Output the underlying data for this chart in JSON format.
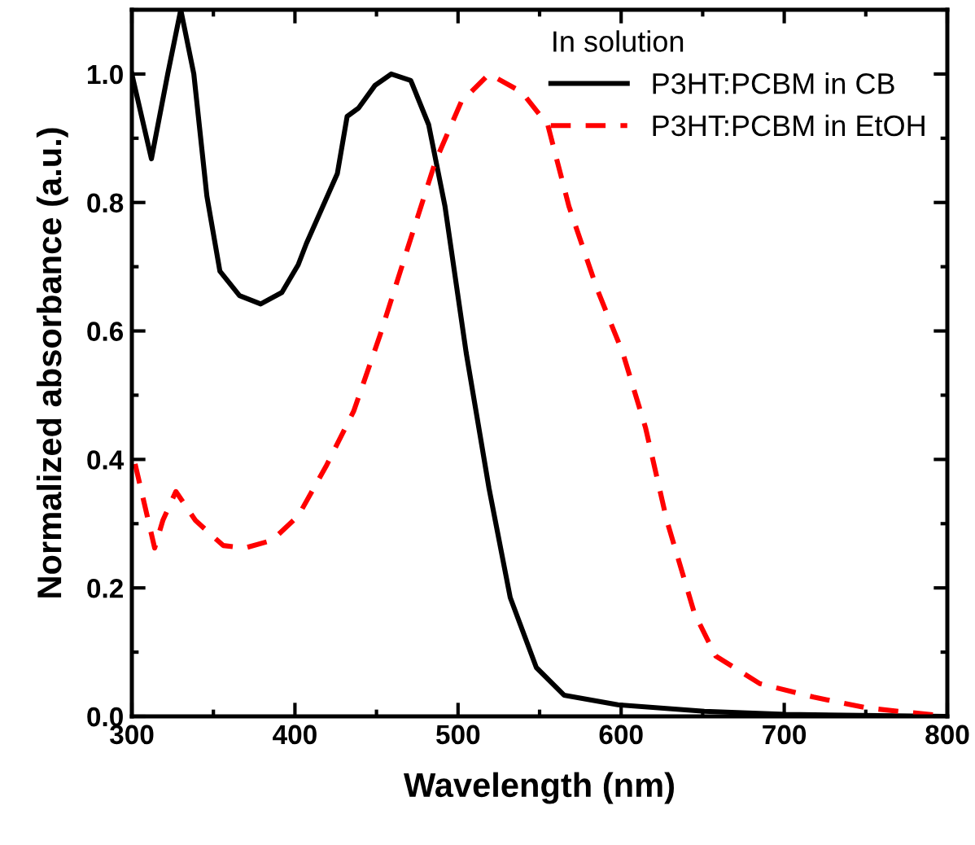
{
  "chart_data": {
    "type": "line",
    "xlabel": "Wavelength (nm)",
    "ylabel": "Normalized absorbance (a.u.)",
    "legend_title": "In solution",
    "legend": "top right",
    "grid": false,
    "marker": "none",
    "xlim": [
      300,
      800
    ],
    "ylim": [
      0,
      1.1
    ],
    "xticks": [
      300,
      400,
      500,
      600,
      700,
      800
    ],
    "yticks": [
      {
        "value": 0,
        "label": "0.0"
      },
      {
        "value": 0.2,
        "label": "0.2"
      },
      {
        "value": 0.4,
        "label": "0.4"
      },
      {
        "value": 0.6,
        "label": "0.6"
      },
      {
        "value": 0.8,
        "label": "0.8"
      },
      {
        "value": 1.0,
        "label": "1.0"
      }
    ],
    "series": [
      {
        "name": "P3HT:PCBM in CB",
        "color": "#000000",
        "line_style": "solid",
        "x": [
          300,
          312,
          322,
          330,
          338,
          346,
          354,
          366,
          379,
          392,
          402,
          407,
          426,
          432,
          439,
          449,
          459,
          471,
          482,
          492,
          505,
          519,
          532,
          548,
          565,
          598,
          651,
          701,
          800
        ],
        "values": [
          1.0,
          0.868,
          1.0,
          1.1,
          1.0,
          0.81,
          0.693,
          0.655,
          0.642,
          0.66,
          0.703,
          0.736,
          0.845,
          0.934,
          0.947,
          0.982,
          1.0,
          0.99,
          0.921,
          0.794,
          0.566,
          0.355,
          0.185,
          0.076,
          0.033,
          0.018,
          0.008,
          0.003,
          0.0
        ]
      },
      {
        "name": "P3HT:PCBM in EtOH",
        "color": "#ff0000",
        "line_style": "dashed",
        "x": [
          302,
          314,
          319,
          327,
          339,
          356,
          369,
          386,
          402,
          419,
          436,
          452,
          469,
          486,
          502,
          519,
          539,
          555,
          568,
          585,
          601,
          615,
          628,
          645,
          658,
          685,
          718,
          751,
          800
        ],
        "values": [
          0.393,
          0.262,
          0.305,
          0.35,
          0.305,
          0.266,
          0.262,
          0.274,
          0.312,
          0.389,
          0.475,
          0.592,
          0.728,
          0.863,
          0.957,
          1.0,
          0.972,
          0.921,
          0.794,
          0.667,
          0.566,
          0.449,
          0.305,
          0.16,
          0.094,
          0.051,
          0.03,
          0.013,
          0.0
        ]
      }
    ]
  }
}
